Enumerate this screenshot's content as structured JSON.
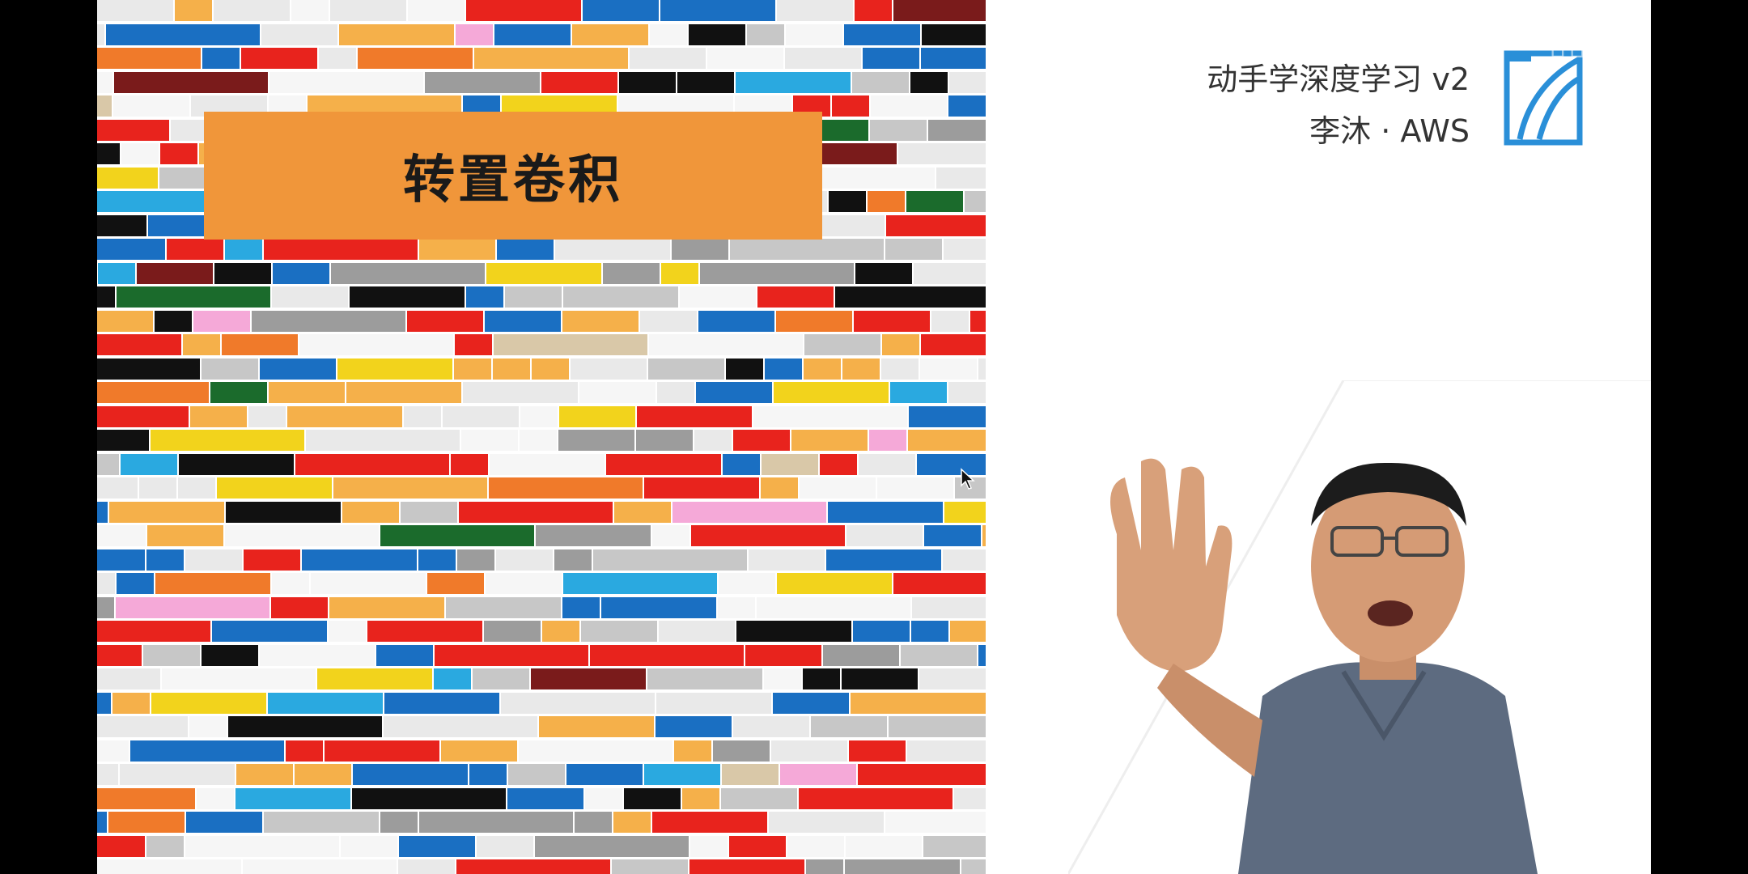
{
  "slide": {
    "title": "转置卷积"
  },
  "course": {
    "title": "动手学深度学习 v2",
    "author": "李沐 · AWS"
  },
  "colors": {
    "banner": "#f0963a",
    "logo": "#2a8fd8",
    "bricks": [
      "#e8231d",
      "#1a6fc2",
      "#f5b04a",
      "#111111",
      "#e9e9e9",
      "#9c9c9c",
      "#f07a2a",
      "#f2d31c",
      "#2aa9e0",
      "#1b6b2c",
      "#f6f6f6",
      "#c7c7c7",
      "#7a1b1b",
      "#f5a9d8",
      "#d9c8a8"
    ]
  },
  "icons": {
    "logo": "d2l-book-icon",
    "cursor": "mouse-pointer-icon"
  }
}
